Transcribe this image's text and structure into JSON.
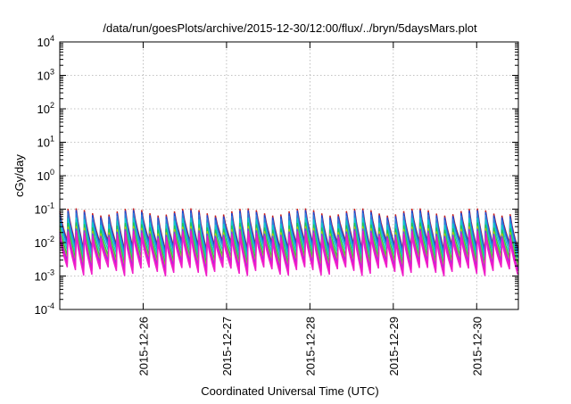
{
  "chart_data": {
    "type": "line",
    "title": "/data/run/goesPlots/archive/2015-12-30/12:00/flux/../bryn/5daysMars.plot",
    "xlabel": "Coordinated Universal Time (UTC)",
    "ylabel": "cGy/day",
    "yscale": "log",
    "ylim": [
      0.0001,
      10000
    ],
    "xlim": [
      "2015-12-25T00:00",
      "2015-12-30T12:00"
    ],
    "grid": true,
    "legend": "none",
    "x_tick_labels": [
      "2015-12-26",
      "2015-12-27",
      "2015-12-28",
      "2015-12-29",
      "2015-12-30"
    ],
    "x_tick_dates": [
      "2015-12-26T00:00",
      "2015-12-27T00:00",
      "2015-12-28T00:00",
      "2015-12-29T00:00",
      "2015-12-30T00:00"
    ],
    "y_ticks": [
      {
        "base": "10",
        "exp": "-4",
        "value": 0.0001
      },
      {
        "base": "10",
        "exp": "-3",
        "value": 0.001
      },
      {
        "base": "10",
        "exp": "-2",
        "value": 0.01
      },
      {
        "base": "10",
        "exp": "-1",
        "value": 0.1
      },
      {
        "base": "10",
        "exp": "0",
        "value": 1
      },
      {
        "base": "10",
        "exp": "1",
        "value": 10
      },
      {
        "base": "10",
        "exp": "2",
        "value": 100
      },
      {
        "base": "10",
        "exp": "3",
        "value": 1000
      },
      {
        "base": "10",
        "exp": "4",
        "value": 10000
      }
    ],
    "pattern": {
      "type": "sawtooth",
      "cycles": 56,
      "note_hidden": false
    },
    "series": [
      {
        "color": "#c81e1e",
        "peak": 0.085,
        "trough": 0.0085
      },
      {
        "color": "#1e46d2",
        "peak": 0.075,
        "trough": 0.0075
      },
      {
        "color": "#2e7fdb",
        "peak": 0.062,
        "trough": 0.0062
      },
      {
        "color": "#12c8c8",
        "peak": 0.045,
        "trough": 0.0045
      },
      {
        "color": "#1ec850",
        "peak": 0.032,
        "trough": 0.0032
      },
      {
        "color": "#b4c814",
        "peak": 0.025,
        "trough": 0.0025
      },
      {
        "color": "#7a3ce6",
        "peak": 0.021,
        "trough": 0.0021
      },
      {
        "color": "#e614d2",
        "peak": 0.018,
        "trough": 0.0018
      },
      {
        "color": "#f01ec8",
        "peak": 0.014,
        "trough": 0.0014
      }
    ]
  }
}
